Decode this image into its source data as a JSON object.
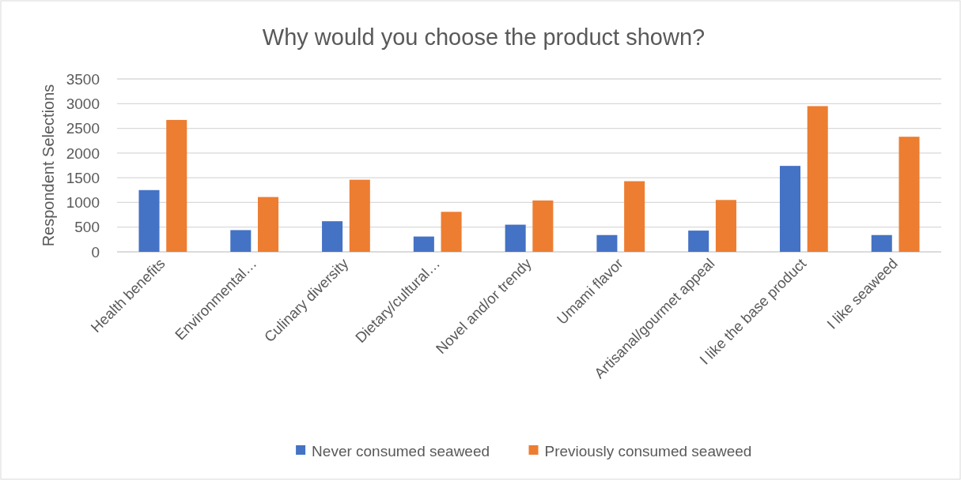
{
  "chart_data": {
    "type": "bar",
    "title": "Why would you choose the product shown?",
    "ylabel": "Respondent Selections",
    "categories": [
      "Health benefits",
      "Environmental…",
      "Culinary diversity",
      "Dietary/cultural…",
      "Novel and/or trendy",
      "Umami flavor",
      "Artisanal/gourmet appeal",
      "I like the base product",
      "I like seaweed"
    ],
    "series": [
      {
        "name": "Never consumed seaweed",
        "color": "#4472c4",
        "values": [
          1250,
          440,
          620,
          310,
          550,
          340,
          430,
          1740,
          340
        ]
      },
      {
        "name": "Previously consumed seaweed",
        "color": "#ed7d31",
        "values": [
          2670,
          1110,
          1460,
          810,
          1040,
          1430,
          1050,
          2950,
          2330
        ]
      }
    ],
    "ylim": [
      0,
      3500
    ],
    "yticks": [
      0,
      500,
      1000,
      1500,
      2000,
      2500,
      3000,
      3500
    ],
    "grid": "y",
    "legend": "bottom"
  }
}
